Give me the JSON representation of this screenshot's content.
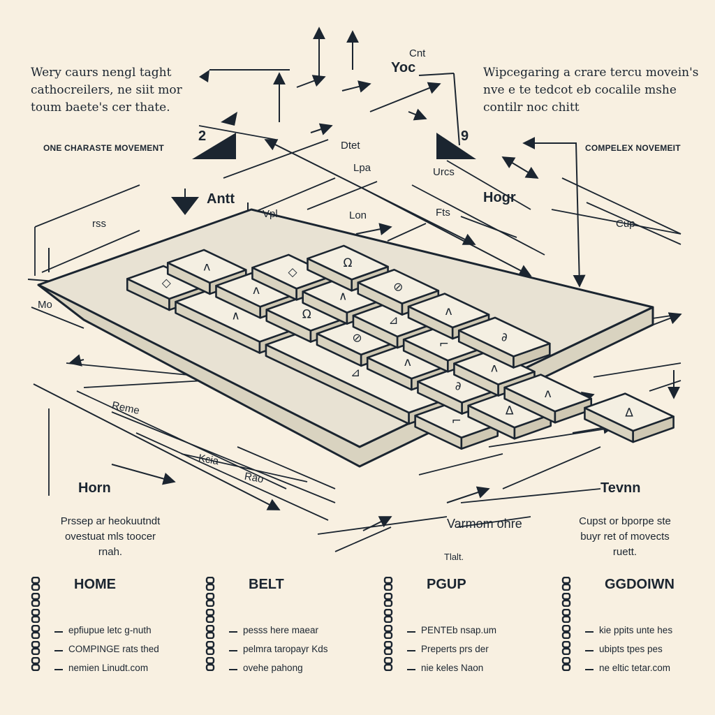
{
  "intro_left": [
    "Wery caurs nengl taght",
    "cathocreilers, ne siit mor",
    "toum baete's cer thate."
  ],
  "intro_right": [
    "Wipcegaring a crare tercu movein's",
    "nve e te tedcot eb cocalile mshe",
    "contilr noc chitt"
  ],
  "section_left": "ONE CHARASTE MOVEMENT",
  "section_right": "COMPELEX NOVEMEIT",
  "num_left": "2",
  "num_right": "9",
  "top_labels": {
    "cnt": "Cnt",
    "yoc": "Yoc",
    "dtet": "Dtet",
    "lpa": "Lpa",
    "antt": "Antt",
    "urcs": "Urcs",
    "hogr": "Hogr",
    "rss": "rss",
    "vpl": "Vpl",
    "lon": "Lon",
    "fts": "Fts",
    "cup": "Cup",
    "mo": "Mo"
  },
  "board_labels": {
    "reme": "Reme",
    "kcia": "Kcia",
    "rao": "Rao"
  },
  "mid": {
    "left_title": "Horn",
    "left_caption": [
      "Prssep ar heokuutndt",
      "ovestuat mls toocer",
      "rnah."
    ],
    "center_label": "Varmom ohre",
    "center_sub": "Tlalt.",
    "right_title": "Tevnn",
    "right_caption": [
      "Cupst or bporpe ste",
      "buyr ret of movects",
      "ruett."
    ]
  },
  "columns": [
    {
      "title": "HOME",
      "items": [
        "epfiupue letc g-nuth",
        "COMPINGE rats thed",
        "nemien Linudt.com"
      ]
    },
    {
      "title": "BELT",
      "items": [
        "pesss here maear",
        "pelmra taropayr Kds",
        "ovehe pahong"
      ]
    },
    {
      "title": "PGUP",
      "items": [
        "PENTEb nsap.um",
        "Preperts prs der",
        "nie keles Naon"
      ]
    },
    {
      "title": "GGDOIWN",
      "items": [
        "kie ppits unte hes",
        "ubipts tpes pes",
        "ne eltic tetar.com"
      ]
    }
  ],
  "colors": {
    "background": "#f8f0e1",
    "ink": "#1b2530",
    "key_top": "#f4efe2",
    "key_side": "#d9d3c0"
  }
}
